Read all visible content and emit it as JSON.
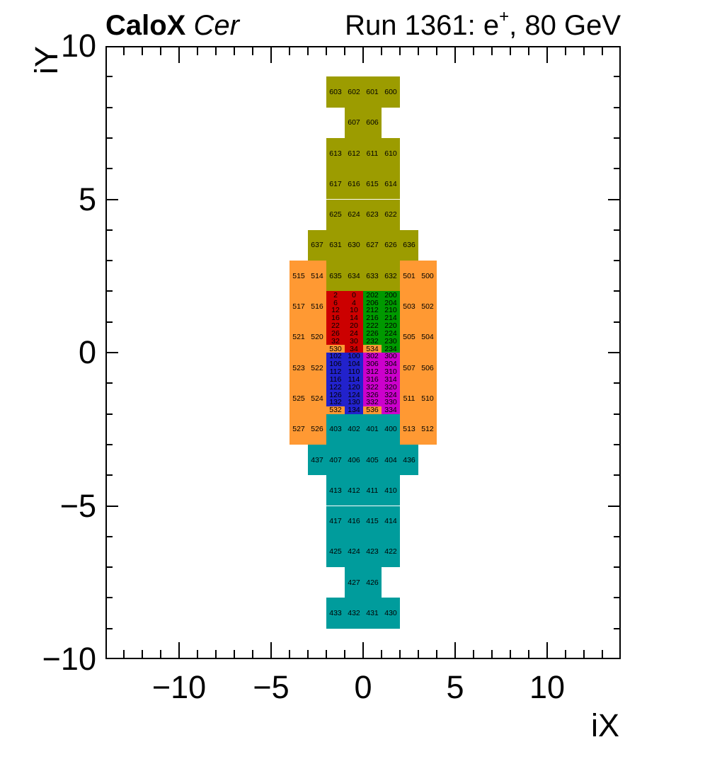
{
  "header": {
    "left_bold": "CaloX",
    "left_italic": "Cer",
    "right_prefix": "Run 1361: e",
    "right_sup": "+",
    "right_suffix": ", 80 GeV"
  },
  "chart_data": {
    "type": "heatmap",
    "title": "CaloX Cer",
    "subtitle": "Run 1361: e+, 80 GeV",
    "xlabel": "iX",
    "ylabel": "iY",
    "xlim": [
      -14,
      14
    ],
    "ylim": [
      -10,
      10
    ],
    "grid": false,
    "legend": "none",
    "x_ticks": [
      {
        "value": -10,
        "label": "−10"
      },
      {
        "value": -5,
        "label": "−5"
      },
      {
        "value": 0,
        "label": "0"
      },
      {
        "value": 5,
        "label": "5"
      },
      {
        "value": 10,
        "label": "10"
      }
    ],
    "y_ticks": [
      {
        "value": -10,
        "label": "−10"
      },
      {
        "value": -5,
        "label": "−5"
      },
      {
        "value": 0,
        "label": "0"
      },
      {
        "value": 5,
        "label": "5"
      },
      {
        "value": 10,
        "label": "10"
      }
    ],
    "minor_tick_step": 1,
    "colors": {
      "olive": "#9C9C00",
      "orange": "#FF9933",
      "teal": "#009C9C",
      "red": "#CC0000",
      "green": "#009900",
      "blue": "#2222CC",
      "magenta": "#CC00CC"
    },
    "cells": [
      [
        -2,
        8,
        1,
        1,
        "olive",
        "603"
      ],
      [
        -1,
        8,
        1,
        1,
        "olive",
        "602"
      ],
      [
        0,
        8,
        1,
        1,
        "olive",
        "601"
      ],
      [
        1,
        8,
        1,
        1,
        "olive",
        "600"
      ],
      [
        -1,
        7,
        1,
        1,
        "olive",
        "607"
      ],
      [
        0,
        7,
        1,
        1,
        "olive",
        "606"
      ],
      [
        -2,
        6,
        1,
        1,
        "olive",
        "613"
      ],
      [
        -1,
        6,
        1,
        1,
        "olive",
        "612"
      ],
      [
        0,
        6,
        1,
        1,
        "olive",
        "611"
      ],
      [
        1,
        6,
        1,
        1,
        "olive",
        "610"
      ],
      [
        -2,
        5,
        1,
        1,
        "olive",
        "617"
      ],
      [
        -1,
        5,
        1,
        1,
        "olive",
        "616"
      ],
      [
        0,
        5,
        1,
        1,
        "olive",
        "615"
      ],
      [
        1,
        5,
        1,
        1,
        "olive",
        "614"
      ],
      [
        -2,
        4,
        1,
        1,
        "olive",
        "625"
      ],
      [
        -1,
        4,
        1,
        1,
        "olive",
        "624"
      ],
      [
        0,
        4,
        1,
        1,
        "olive",
        "623"
      ],
      [
        1,
        4,
        1,
        1,
        "olive",
        "622"
      ],
      [
        -3,
        3,
        1,
        1,
        "olive",
        "637"
      ],
      [
        -2,
        3,
        1,
        1,
        "olive",
        "631"
      ],
      [
        -1,
        3,
        1,
        1,
        "olive",
        "630"
      ],
      [
        0,
        3,
        1,
        1,
        "olive",
        "627"
      ],
      [
        1,
        3,
        1,
        1,
        "olive",
        "626"
      ],
      [
        2,
        3,
        1,
        1,
        "olive",
        "636"
      ],
      [
        -2,
        2,
        1,
        1,
        "olive",
        "635"
      ],
      [
        -1,
        2,
        1,
        1,
        "olive",
        "634"
      ],
      [
        0,
        2,
        1,
        1,
        "olive",
        "633"
      ],
      [
        1,
        2,
        1,
        1,
        "olive",
        "632"
      ],
      [
        -4,
        2,
        1,
        1,
        "orange",
        "515"
      ],
      [
        -3,
        2,
        1,
        1,
        "orange",
        "514"
      ],
      [
        -4,
        1,
        1,
        1,
        "orange",
        "517"
      ],
      [
        -3,
        1,
        1,
        1,
        "orange",
        "516"
      ],
      [
        -4,
        0,
        1,
        1,
        "orange",
        "521"
      ],
      [
        -3,
        0,
        1,
        1,
        "orange",
        "520"
      ],
      [
        -4,
        -1,
        1,
        1,
        "orange",
        "523"
      ],
      [
        -3,
        -1,
        1,
        1,
        "orange",
        "522"
      ],
      [
        -4,
        -2,
        1,
        1,
        "orange",
        "525"
      ],
      [
        -3,
        -2,
        1,
        1,
        "orange",
        "524"
      ],
      [
        -4,
        -3,
        1,
        1,
        "orange",
        "527"
      ],
      [
        -3,
        -3,
        1,
        1,
        "orange",
        "526"
      ],
      [
        2,
        2,
        1,
        1,
        "orange",
        "501"
      ],
      [
        3,
        2,
        1,
        1,
        "orange",
        "500"
      ],
      [
        2,
        1,
        1,
        1,
        "orange",
        "503"
      ],
      [
        3,
        1,
        1,
        1,
        "orange",
        "502"
      ],
      [
        2,
        0,
        1,
        1,
        "orange",
        "505"
      ],
      [
        3,
        0,
        1,
        1,
        "orange",
        "504"
      ],
      [
        2,
        -1,
        1,
        1,
        "orange",
        "507"
      ],
      [
        3,
        -1,
        1,
        1,
        "orange",
        "506"
      ],
      [
        2,
        -2,
        1,
        1,
        "orange",
        "511"
      ],
      [
        3,
        -2,
        1,
        1,
        "orange",
        "510"
      ],
      [
        2,
        -3,
        1,
        1,
        "orange",
        "513"
      ],
      [
        3,
        -3,
        1,
        1,
        "orange",
        "512"
      ],
      [
        -2,
        1.75,
        1,
        0.25,
        "red",
        "2"
      ],
      [
        -1,
        1.75,
        1,
        0.25,
        "red",
        "0"
      ],
      [
        -2,
        1.5,
        1,
        0.25,
        "red",
        "6"
      ],
      [
        -1,
        1.5,
        1,
        0.25,
        "red",
        "4"
      ],
      [
        -2,
        1.25,
        1,
        0.25,
        "red",
        "12"
      ],
      [
        -1,
        1.25,
        1,
        0.25,
        "red",
        "10"
      ],
      [
        -2,
        1,
        1,
        0.25,
        "red",
        "16"
      ],
      [
        -1,
        1,
        1,
        0.25,
        "red",
        "14"
      ],
      [
        -2,
        0.75,
        1,
        0.25,
        "red",
        "22"
      ],
      [
        -1,
        0.75,
        1,
        0.25,
        "red",
        "20"
      ],
      [
        -2,
        0.5,
        1,
        0.25,
        "red",
        "26"
      ],
      [
        -1,
        0.5,
        1,
        0.25,
        "red",
        "24"
      ],
      [
        -2,
        0.25,
        1,
        0.25,
        "red",
        "32"
      ],
      [
        -1,
        0.25,
        1,
        0.25,
        "red",
        "30"
      ],
      [
        -2,
        0,
        1,
        0.25,
        "orange",
        "530"
      ],
      [
        -1,
        0,
        1,
        0.25,
        "red",
        "34"
      ],
      [
        0,
        1.75,
        1,
        0.25,
        "green",
        "202"
      ],
      [
        1,
        1.75,
        1,
        0.25,
        "green",
        "200"
      ],
      [
        0,
        1.5,
        1,
        0.25,
        "green",
        "206"
      ],
      [
        1,
        1.5,
        1,
        0.25,
        "green",
        "204"
      ],
      [
        0,
        1.25,
        1,
        0.25,
        "green",
        "212"
      ],
      [
        1,
        1.25,
        1,
        0.25,
        "green",
        "210"
      ],
      [
        0,
        1,
        1,
        0.25,
        "green",
        "216"
      ],
      [
        1,
        1,
        1,
        0.25,
        "green",
        "214"
      ],
      [
        0,
        0.75,
        1,
        0.25,
        "green",
        "222"
      ],
      [
        1,
        0.75,
        1,
        0.25,
        "green",
        "220"
      ],
      [
        0,
        0.5,
        1,
        0.25,
        "green",
        "226"
      ],
      [
        1,
        0.5,
        1,
        0.25,
        "green",
        "224"
      ],
      [
        0,
        0.25,
        1,
        0.25,
        "green",
        "232"
      ],
      [
        1,
        0.25,
        1,
        0.25,
        "green",
        "230"
      ],
      [
        0,
        0,
        1,
        0.25,
        "orange",
        "534"
      ],
      [
        1,
        0,
        1,
        0.25,
        "green",
        "234"
      ],
      [
        -2,
        -0.25,
        1,
        0.25,
        "blue",
        "102"
      ],
      [
        -1,
        -0.25,
        1,
        0.25,
        "blue",
        "100"
      ],
      [
        -2,
        -0.5,
        1,
        0.25,
        "blue",
        "106"
      ],
      [
        -1,
        -0.5,
        1,
        0.25,
        "blue",
        "104"
      ],
      [
        -2,
        -0.75,
        1,
        0.25,
        "blue",
        "112"
      ],
      [
        -1,
        -0.75,
        1,
        0.25,
        "blue",
        "110"
      ],
      [
        -2,
        -1,
        1,
        0.25,
        "blue",
        "116"
      ],
      [
        -1,
        -1,
        1,
        0.25,
        "blue",
        "114"
      ],
      [
        -2,
        -1.25,
        1,
        0.25,
        "blue",
        "122"
      ],
      [
        -1,
        -1.25,
        1,
        0.25,
        "blue",
        "120"
      ],
      [
        -2,
        -1.5,
        1,
        0.25,
        "blue",
        "126"
      ],
      [
        -1,
        -1.5,
        1,
        0.25,
        "blue",
        "124"
      ],
      [
        -2,
        -1.75,
        1,
        0.25,
        "blue",
        "132"
      ],
      [
        -1,
        -1.75,
        1,
        0.25,
        "blue",
        "130"
      ],
      [
        -2,
        -2,
        1,
        0.25,
        "orange",
        "532"
      ],
      [
        -1,
        -2,
        1,
        0.25,
        "blue",
        "134"
      ],
      [
        0,
        -0.25,
        1,
        0.25,
        "magenta",
        "302"
      ],
      [
        1,
        -0.25,
        1,
        0.25,
        "magenta",
        "300"
      ],
      [
        0,
        -0.5,
        1,
        0.25,
        "magenta",
        "306"
      ],
      [
        1,
        -0.5,
        1,
        0.25,
        "magenta",
        "304"
      ],
      [
        0,
        -0.75,
        1,
        0.25,
        "magenta",
        "312"
      ],
      [
        1,
        -0.75,
        1,
        0.25,
        "magenta",
        "310"
      ],
      [
        0,
        -1,
        1,
        0.25,
        "magenta",
        "316"
      ],
      [
        1,
        -1,
        1,
        0.25,
        "magenta",
        "314"
      ],
      [
        0,
        -1.25,
        1,
        0.25,
        "magenta",
        "322"
      ],
      [
        1,
        -1.25,
        1,
        0.25,
        "magenta",
        "320"
      ],
      [
        0,
        -1.5,
        1,
        0.25,
        "magenta",
        "326"
      ],
      [
        1,
        -1.5,
        1,
        0.25,
        "magenta",
        "324"
      ],
      [
        0,
        -1.75,
        1,
        0.25,
        "magenta",
        "332"
      ],
      [
        1,
        -1.75,
        1,
        0.25,
        "magenta",
        "330"
      ],
      [
        0,
        -2,
        1,
        0.25,
        "orange",
        "536"
      ],
      [
        1,
        -2,
        1,
        0.25,
        "magenta",
        "334"
      ],
      [
        -2,
        -3,
        1,
        1,
        "teal",
        "403"
      ],
      [
        -1,
        -3,
        1,
        1,
        "teal",
        "402"
      ],
      [
        0,
        -3,
        1,
        1,
        "teal",
        "401"
      ],
      [
        1,
        -3,
        1,
        1,
        "teal",
        "400"
      ],
      [
        -3,
        -4,
        1,
        1,
        "teal",
        "437"
      ],
      [
        -2,
        -4,
        1,
        1,
        "teal",
        "407"
      ],
      [
        -1,
        -4,
        1,
        1,
        "teal",
        "406"
      ],
      [
        0,
        -4,
        1,
        1,
        "teal",
        "405"
      ],
      [
        1,
        -4,
        1,
        1,
        "teal",
        "404"
      ],
      [
        2,
        -4,
        1,
        1,
        "teal",
        "436"
      ],
      [
        -2,
        -5,
        1,
        1,
        "teal",
        "413"
      ],
      [
        -1,
        -5,
        1,
        1,
        "teal",
        "412"
      ],
      [
        0,
        -5,
        1,
        1,
        "teal",
        "411"
      ],
      [
        1,
        -5,
        1,
        1,
        "teal",
        "410"
      ],
      [
        -2,
        -6,
        1,
        1,
        "teal",
        "417"
      ],
      [
        -1,
        -6,
        1,
        1,
        "teal",
        "416"
      ],
      [
        0,
        -6,
        1,
        1,
        "teal",
        "415"
      ],
      [
        1,
        -6,
        1,
        1,
        "teal",
        "414"
      ],
      [
        -2,
        -7,
        1,
        1,
        "teal",
        "425"
      ],
      [
        -1,
        -7,
        1,
        1,
        "teal",
        "424"
      ],
      [
        0,
        -7,
        1,
        1,
        "teal",
        "423"
      ],
      [
        1,
        -7,
        1,
        1,
        "teal",
        "422"
      ],
      [
        -1,
        -8,
        1,
        1,
        "teal",
        "427"
      ],
      [
        0,
        -8,
        1,
        1,
        "teal",
        "426"
      ],
      [
        -2,
        -9,
        1,
        1,
        "teal",
        "433"
      ],
      [
        -1,
        -9,
        1,
        1,
        "teal",
        "432"
      ],
      [
        0,
        -9,
        1,
        1,
        "teal",
        "431"
      ],
      [
        1,
        -9,
        1,
        1,
        "teal",
        "430"
      ]
    ]
  }
}
